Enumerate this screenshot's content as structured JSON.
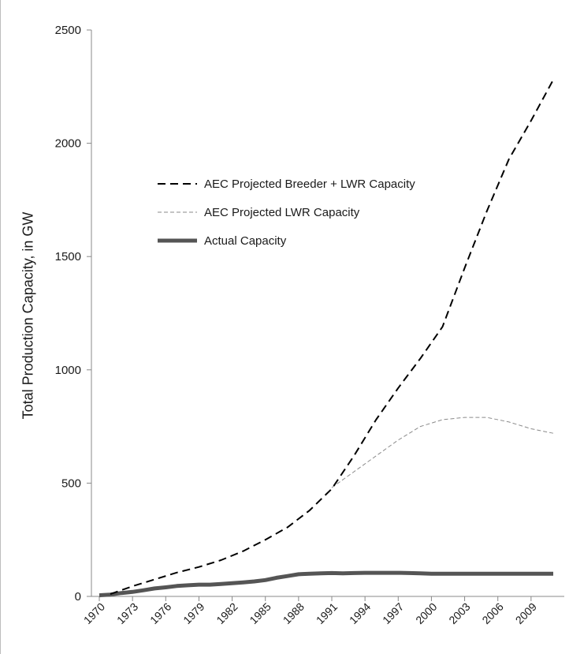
{
  "chart_data": {
    "type": "line",
    "xlabel": "",
    "ylabel": "Total Production Capacity, in GW",
    "xlim": [
      1970,
      2012
    ],
    "ylim": [
      0,
      2500
    ],
    "x_ticks": [
      "1970",
      "1973",
      "1976",
      "1979",
      "1982",
      "1985",
      "1988",
      "1991",
      "1994",
      "1997",
      "2000",
      "2003",
      "2006",
      "2009"
    ],
    "y_ticks": [
      "0",
      "500",
      "1000",
      "1500",
      "2000",
      "2500"
    ],
    "grid": false,
    "legend_position": "upper-left-inside",
    "series": [
      {
        "name": "AEC Projected Breeder + LWR Capacity",
        "style": "dashed",
        "color": "#000000",
        "x": [
          1971,
          1973,
          1975,
          1977,
          1979,
          1981,
          1983,
          1985,
          1987,
          1989,
          1991,
          1993,
          1995,
          1997,
          1999,
          2001,
          2003,
          2005,
          2007,
          2009,
          2011
        ],
        "y": [
          10,
          45,
          75,
          105,
          130,
          160,
          200,
          250,
          305,
          380,
          475,
          620,
          780,
          920,
          1050,
          1190,
          1450,
          1700,
          1930,
          2100,
          2280
        ]
      },
      {
        "name": "AEC Projected LWR Capacity",
        "style": "thin-dashed",
        "color": "#8a8a8a",
        "x": [
          1991,
          1993,
          1995,
          1997,
          1999,
          2001,
          2003,
          2005,
          2007,
          2009,
          2011
        ],
        "y": [
          480,
          550,
          620,
          690,
          750,
          780,
          790,
          790,
          770,
          740,
          720
        ]
      },
      {
        "name": "Actual Capacity",
        "style": "solid-thick",
        "color": "#555555",
        "x": [
          1970,
          1971,
          1972,
          1973,
          1974,
          1975,
          1976,
          1977,
          1978,
          1979,
          1980,
          1981,
          1982,
          1983,
          1984,
          1985,
          1986,
          1987,
          1988,
          1989,
          1990,
          1991,
          1992,
          1993,
          1994,
          1995,
          1996,
          1997,
          1998,
          1999,
          2000,
          2001,
          2002,
          2003,
          2004,
          2005,
          2006,
          2007,
          2008,
          2009,
          2010,
          2011
        ],
        "y": [
          5,
          8,
          15,
          20,
          27,
          35,
          40,
          46,
          49,
          52,
          52,
          55,
          58,
          62,
          66,
          72,
          82,
          90,
          98,
          100,
          102,
          103,
          102,
          103,
          104,
          104,
          104,
          104,
          103,
          102,
          100,
          100,
          100,
          100,
          100,
          100,
          100,
          100,
          100,
          100,
          100,
          100
        ]
      }
    ]
  }
}
